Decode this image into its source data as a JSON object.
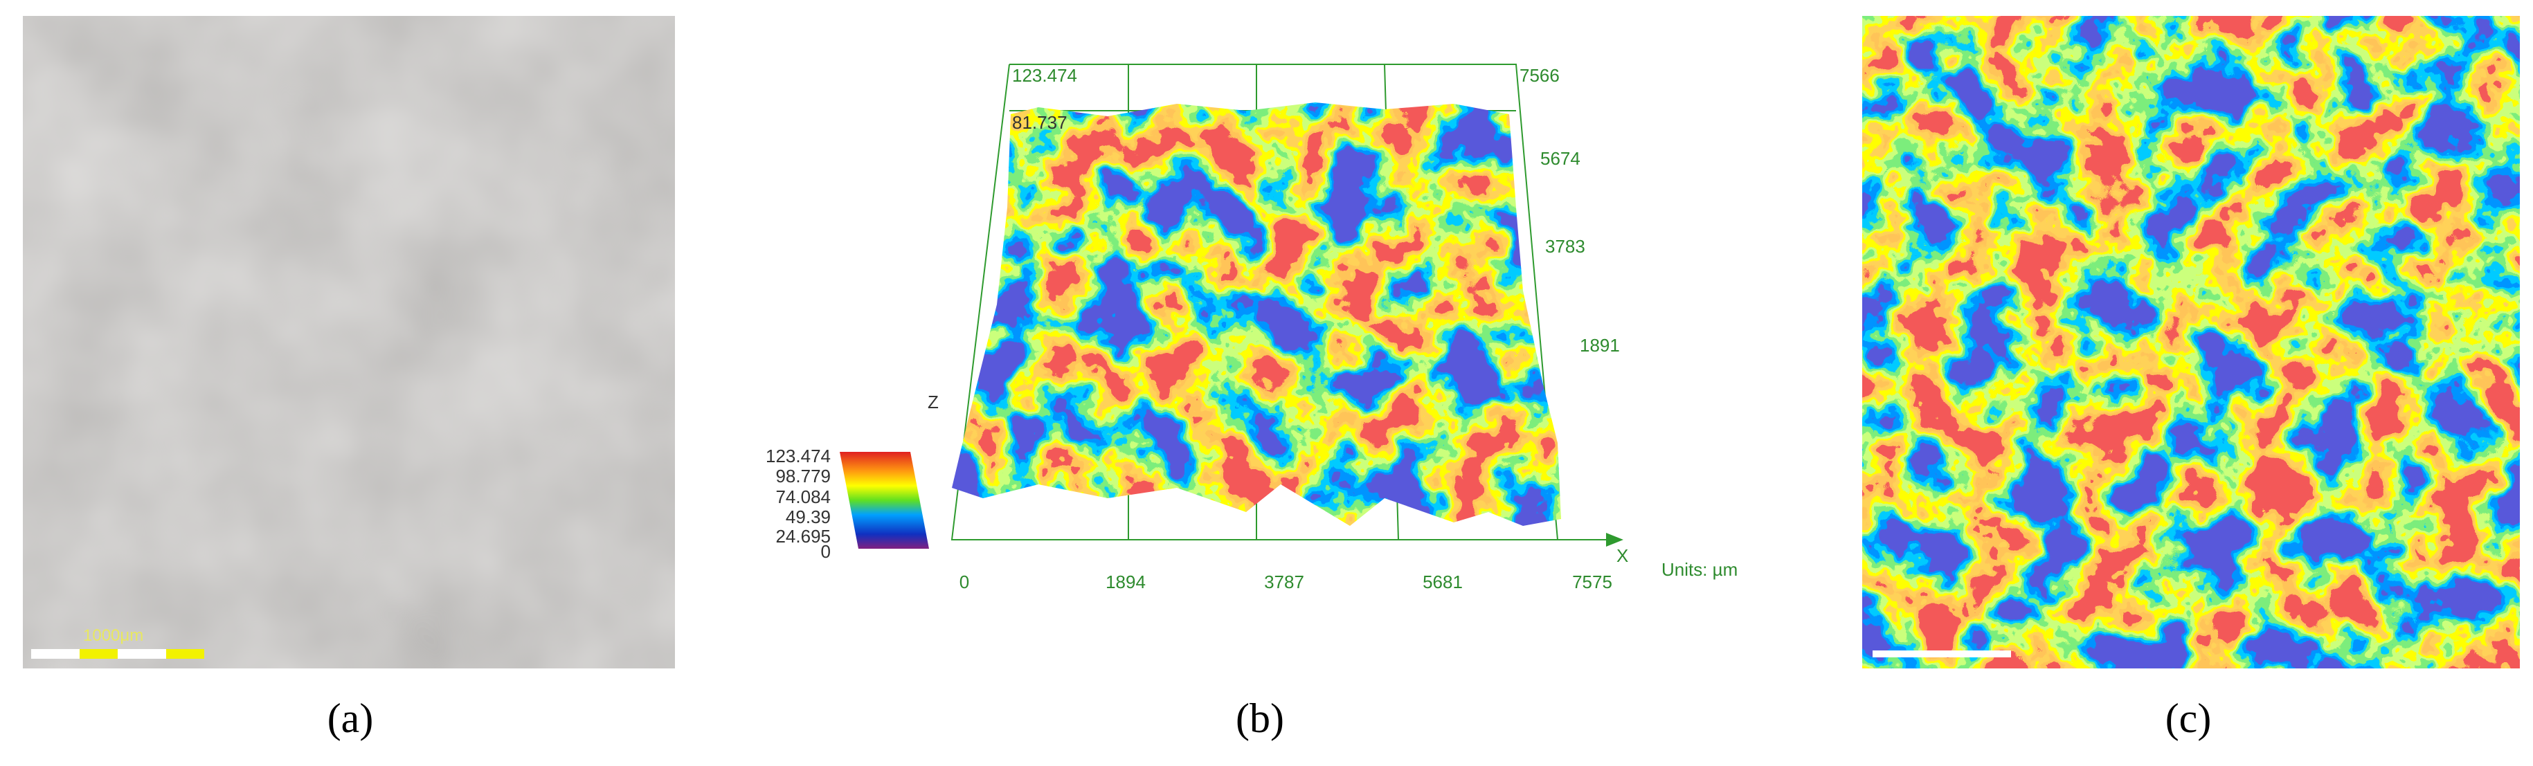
{
  "panels": [
    {
      "label": "(a)",
      "scale_bar": "1000μm"
    },
    {
      "label": "(b)",
      "z_max": "123.474",
      "z_second": "81.737",
      "y_ticks": [
        "7566",
        "5674",
        "3783",
        "1891"
      ],
      "x_ticks": [
        "0",
        "1894",
        "3787",
        "5681",
        "7575"
      ],
      "x_axis": "X",
      "z_axis": "Z",
      "units": "Units: µm",
      "colorbar_ticks": [
        "123.474",
        "98.779",
        "74.084",
        "49.39",
        "24.695",
        "0"
      ]
    },
    {
      "label": "(c)"
    }
  ]
}
